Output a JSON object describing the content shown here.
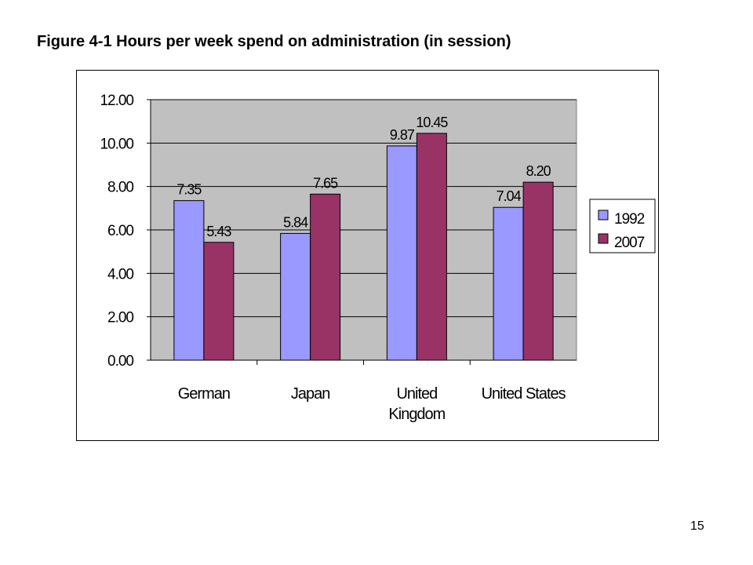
{
  "slide": {
    "title": "Figure 4-1 Hours per week spend on administration (in session)",
    "page_number": "15"
  },
  "chart_data": {
    "type": "bar",
    "title": "",
    "xlabel": "",
    "ylabel": "",
    "categories": [
      [
        "German"
      ],
      [
        "Japan"
      ],
      [
        "United",
        "Kingdom"
      ],
      [
        "United States"
      ]
    ],
    "series": [
      {
        "name": "1992",
        "values": [
          7.35,
          5.84,
          9.87,
          7.04
        ],
        "labels": [
          "7.35",
          "5.84",
          "9.87",
          "7.04"
        ],
        "color": "#9999ff"
      },
      {
        "name": "2007",
        "values": [
          5.43,
          7.65,
          10.45,
          8.2
        ],
        "labels": [
          "5.43",
          "7.65",
          "10.45",
          "8.20"
        ],
        "color": "#993366"
      }
    ],
    "ylim": [
      0,
      12
    ],
    "yticks": [
      "0.00",
      "2.00",
      "4.00",
      "6.00",
      "8.00",
      "10.00",
      "12.00"
    ],
    "grid": true,
    "plot_background": "#c0c0c0",
    "legend_position": "right"
  }
}
